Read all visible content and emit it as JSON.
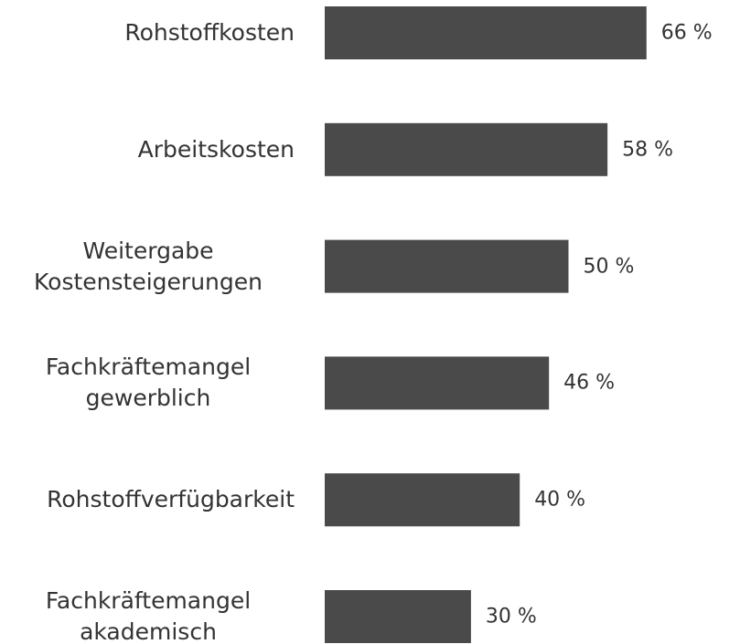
{
  "chart_data": {
    "type": "bar",
    "orientation": "horizontal",
    "categories": [
      "Rohstoffkosten",
      "Arbeitskosten",
      "Weitergabe Kostensteigerungen",
      "Fachkräftemangel gewerblich",
      "Rohstoffverfügbarkeit",
      "Fachkräftemangel akademisch"
    ],
    "values": [
      66,
      58,
      50,
      46,
      40,
      30
    ],
    "value_labels": [
      "66 %",
      "58 %",
      "50 %",
      "46 %",
      "40 %",
      "30 %"
    ],
    "color": "#4a4a4a"
  }
}
